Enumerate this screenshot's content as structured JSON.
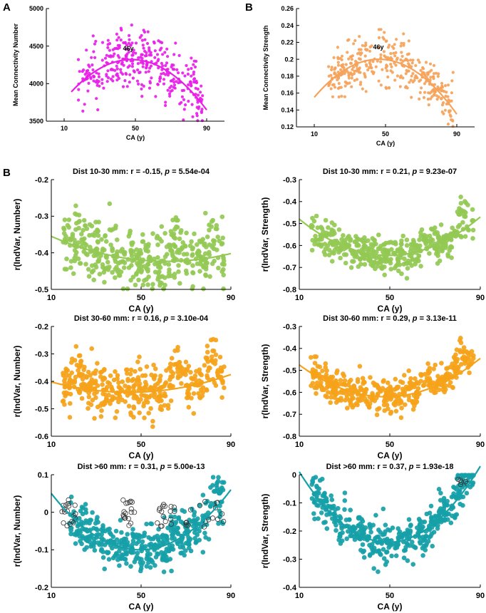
{
  "panel_letters": [
    "A",
    "B",
    "B"
  ],
  "chart_data": [
    {
      "type": "scatter",
      "title": "",
      "xlabel": "CA (y)",
      "ylabel": "Mean Connectivity Number",
      "xlim": [
        0,
        100
      ],
      "ylim": [
        3500,
        5000
      ],
      "xticks": [
        "10",
        "50",
        "90"
      ],
      "xtick_values": [
        10,
        50,
        90
      ],
      "yticks": [
        "3500",
        "4000",
        "4500",
        "5000"
      ],
      "ytick_values": [
        3500,
        4000,
        4500,
        5000
      ],
      "color": "#e81ee8",
      "annotation": "46y",
      "annotation_at": [
        46,
        4440
      ],
      "fit": {
        "type": "quadratic",
        "points": [
          [
            14,
            3890
          ],
          [
            46,
            4320
          ],
          [
            90,
            3650
          ]
        ]
      },
      "cloud": {
        "n": 360,
        "x_range": [
          18,
          88
        ],
        "spread": 230,
        "seed": 11
      },
      "grid": false
    },
    {
      "type": "scatter",
      "title": "",
      "xlabel": "CA (y)",
      "ylabel": "Mean Connectivity Strength",
      "xlim": [
        0,
        100
      ],
      "ylim": [
        0.12,
        0.26
      ],
      "xticks": [
        "10",
        "50",
        "90"
      ],
      "xtick_values": [
        10,
        50,
        90
      ],
      "yticks": [
        "0.12",
        "0.14",
        "0.16",
        "0.18",
        "0.2",
        "0.22",
        "0.24",
        "0.26"
      ],
      "ytick_values": [
        0.12,
        0.14,
        0.16,
        0.18,
        0.2,
        0.22,
        0.24,
        0.26
      ],
      "color": "#f5a35b",
      "annotation": "46y",
      "annotation_at": [
        46,
        0.212
      ],
      "fit": {
        "type": "quadratic",
        "points": [
          [
            10,
            0.155
          ],
          [
            46,
            0.2
          ],
          [
            90,
            0.135
          ]
        ]
      },
      "cloud": {
        "n": 360,
        "x_range": [
          18,
          88
        ],
        "spread": 0.017,
        "seed": 23
      },
      "grid": false
    },
    {
      "type": "scatter",
      "title": "Dist 10-30 mm: r = -0.15, ",
      "title_p": "p",
      "title_tail": " = 5.54e-04",
      "xlabel": "CA (y)",
      "ylabel": "r(IndVar, Number)",
      "xlim": [
        10,
        90
      ],
      "ylim": [
        -0.5,
        -0.2
      ],
      "xticks": [
        "10",
        "50",
        "90"
      ],
      "xtick_values": [
        10,
        50,
        90
      ],
      "yticks": [
        "-0.5",
        "-0.4",
        "-0.3",
        "-0.2"
      ],
      "ytick_values": [
        -0.5,
        -0.4,
        -0.3,
        -0.2
      ],
      "color": "#93c954",
      "fit": {
        "type": "quadratic",
        "points": [
          [
            10,
            -0.355
          ],
          [
            50,
            -0.42
          ],
          [
            90,
            -0.402
          ]
        ]
      },
      "cloud": {
        "n": 420,
        "x_range": [
          15,
          87
        ],
        "spread": 0.05,
        "seed": 31,
        "bumps": [
          [
            23,
            0.04
          ],
          [
            66,
            0.06
          ],
          [
            82,
            0.05
          ]
        ]
      },
      "grid": false
    },
    {
      "type": "scatter",
      "title": "Dist 10-30 mm: r = 0.21, ",
      "title_p": "p",
      "title_tail": " = 9.23e-07",
      "xlabel": "CA (y)",
      "ylabel": "r(IndVar, Strength)",
      "xlim": [
        10,
        90
      ],
      "ylim": [
        -0.8,
        -0.3
      ],
      "xticks": [
        "10",
        "50",
        "90"
      ],
      "xtick_values": [
        10,
        50,
        90
      ],
      "yticks": [
        "-0.8",
        "-0.7",
        "-0.6",
        "-0.5",
        "-0.4",
        "-0.3"
      ],
      "ytick_values": [
        -0.8,
        -0.7,
        -0.6,
        -0.5,
        -0.4,
        -0.3
      ],
      "color": "#93c954",
      "fit": {
        "type": "quadratic",
        "points": [
          [
            10,
            -0.48
          ],
          [
            48,
            -0.645
          ],
          [
            90,
            -0.47
          ]
        ]
      },
      "cloud": {
        "n": 420,
        "x_range": [
          15,
          87
        ],
        "spread": 0.045,
        "seed": 37,
        "bumps": [
          [
            66,
            0.05
          ],
          [
            82,
            0.08
          ]
        ]
      },
      "grid": false
    },
    {
      "type": "scatter",
      "title": "Dist 30-60 mm: r = 0.16, ",
      "title_p": "p",
      "title_tail": " = 3.10e-04",
      "xlabel": "CA (y)",
      "ylabel": "r(IndVar, Number)",
      "xlim": [
        10,
        90
      ],
      "ylim": [
        -0.6,
        -0.2
      ],
      "xticks": [
        "10",
        "50",
        "90"
      ],
      "xtick_values": [
        10,
        50,
        90
      ],
      "yticks": [
        "-0.6",
        "-0.5",
        "-0.4",
        "-0.3",
        "-0.2"
      ],
      "ytick_values": [
        -0.6,
        -0.5,
        -0.4,
        -0.3,
        -0.2
      ],
      "color": "#f5a31a",
      "fit": {
        "type": "quadratic",
        "points": [
          [
            10,
            -0.402
          ],
          [
            45,
            -0.44
          ],
          [
            90,
            -0.375
          ]
        ]
      },
      "cloud": {
        "n": 420,
        "x_range": [
          15,
          87
        ],
        "spread": 0.05,
        "seed": 41,
        "bumps": [
          [
            23,
            0.05
          ],
          [
            66,
            0.09
          ],
          [
            82,
            0.08
          ]
        ]
      },
      "grid": false
    },
    {
      "type": "scatter",
      "title": "Dist 30-60 mm: r = 0.29, ",
      "title_p": "p",
      "title_tail": " = 3.13e-11",
      "xlabel": "CA (y)",
      "ylabel": "r(IndVar, Strength)",
      "xlim": [
        10,
        90
      ],
      "ylim": [
        -0.8,
        -0.3
      ],
      "xticks": [
        "10",
        "50",
        "90"
      ],
      "xtick_values": [
        10,
        50,
        90
      ],
      "yticks": [
        "-0.8",
        "-0.7",
        "-0.6",
        "-0.5",
        "-0.4",
        "-0.3"
      ],
      "ytick_values": [
        -0.8,
        -0.7,
        -0.6,
        -0.5,
        -0.4,
        -0.3
      ],
      "color": "#f5a31a",
      "fit": {
        "type": "quadratic",
        "points": [
          [
            10,
            -0.475
          ],
          [
            50,
            -0.62
          ],
          [
            90,
            -0.445
          ]
        ]
      },
      "cloud": {
        "n": 420,
        "x_range": [
          15,
          87
        ],
        "spread": 0.045,
        "seed": 43,
        "bumps": [
          [
            66,
            0.06
          ],
          [
            82,
            0.08
          ]
        ]
      },
      "grid": false
    },
    {
      "type": "scatter",
      "title": "Dist >60 mm: r = 0.31, ",
      "title_p": "p",
      "title_tail": " = 5.00e-13",
      "xlabel": "CA (y)",
      "ylabel": "r(IndVar, Number)",
      "xlim": [
        10,
        90
      ],
      "ylim": [
        -0.2,
        0.1
      ],
      "xticks": [
        "10",
        "50",
        "90"
      ],
      "xtick_values": [
        10,
        50,
        90
      ],
      "yticks": [
        "-0.2",
        "-0.1",
        "0",
        "0.1"
      ],
      "ytick_values": [
        -0.2,
        -0.1,
        0,
        0.1
      ],
      "color": "#16a0a8",
      "fit": {
        "type": "quadratic",
        "points": [
          [
            10,
            0.05
          ],
          [
            50,
            -0.1
          ],
          [
            90,
            0.06
          ]
        ]
      },
      "cloud": {
        "n": 420,
        "x_range": [
          18,
          87
        ],
        "spread": 0.035,
        "seed": 53,
        "bumps": [
          [
            66,
            0.03
          ],
          [
            82,
            0.04
          ]
        ]
      },
      "open_points": {
        "n": 70,
        "ranges": [
          [
            14,
            21
          ],
          [
            42,
            48
          ],
          [
            57,
            66
          ],
          [
            70,
            87
          ]
        ],
        "y_range": [
          -0.04,
          0.035
        ],
        "seed": 59
      },
      "grid": false
    },
    {
      "type": "scatter",
      "title": "Dist >60 mm: r = 0.37, ",
      "title_p": "p",
      "title_tail": " = 1.93e-18",
      "xlabel": "CA (y)",
      "ylabel": "r(IndVar, Strength)",
      "xlim": [
        10,
        90
      ],
      "ylim": [
        -0.4,
        0.0
      ],
      "xticks": [
        "10",
        "50",
        "90"
      ],
      "xtick_values": [
        10,
        50,
        90
      ],
      "yticks": [
        "-0.4",
        "-0.3",
        "-0.2",
        "-0.1",
        "0"
      ],
      "ytick_values": [
        -0.4,
        -0.3,
        -0.2,
        -0.1,
        0
      ],
      "color": "#16a0a8",
      "fit": {
        "type": "quadratic",
        "points": [
          [
            10,
            0.01
          ],
          [
            50,
            -0.24
          ],
          [
            90,
            0.03
          ]
        ]
      },
      "cloud": {
        "n": 420,
        "x_range": [
          15,
          87
        ],
        "spread": 0.045,
        "seed": 61,
        "bumps": [
          [
            82,
            0.04
          ]
        ]
      },
      "open_points": {
        "n": 6,
        "ranges": [
          [
            80,
            86
          ]
        ],
        "y_range": [
          -0.035,
          -0.01
        ],
        "seed": 67
      },
      "grid": false
    }
  ]
}
